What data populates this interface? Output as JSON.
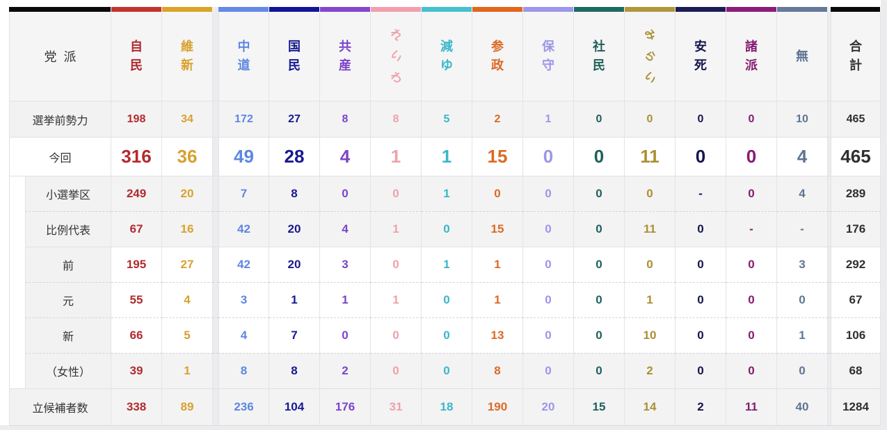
{
  "page": {
    "background": "#ececee"
  },
  "table": {
    "corner_label": "党派",
    "columns": [
      {
        "id": "jimin",
        "label": "自民",
        "color": "#b32a2e",
        "bar": "#c23429"
      },
      {
        "id": "ishin",
        "label": "維新",
        "color": "#d8a12e",
        "bar": "#dba428"
      },
      {
        "id": "chudo",
        "label": "中道",
        "color": "#5d87e2",
        "bar": "#6489e7"
      },
      {
        "id": "kokumin",
        "label": "国民",
        "color": "#19198f",
        "bar": "#15159b"
      },
      {
        "id": "kyosan",
        "label": "共産",
        "color": "#7b44c8",
        "bar": "#8547cd"
      },
      {
        "id": "reiwa",
        "label": "れいわ",
        "color": "#efa1ab",
        "bar": "#f09fae"
      },
      {
        "id": "genyu",
        "label": "減ゆ",
        "color": "#3bb7c8",
        "bar": "#45c1cd"
      },
      {
        "id": "sansei",
        "label": "参政",
        "color": "#db6a24",
        "bar": "#e2661c"
      },
      {
        "id": "hoshu",
        "label": "保守",
        "color": "#9c96e7",
        "bar": "#9e97e9"
      },
      {
        "id": "shamin",
        "label": "社民",
        "color": "#20605b",
        "bar": "#1d6a63"
      },
      {
        "id": "mirai",
        "label": "みらい",
        "color": "#aa9034",
        "bar": "#b2963c"
      },
      {
        "id": "anshi",
        "label": "安死",
        "color": "#16164e",
        "bar": "#1c1c55"
      },
      {
        "id": "shoha",
        "label": "諸派",
        "color": "#871b72",
        "bar": "#8d1b79"
      },
      {
        "id": "mu",
        "label": "無",
        "color": "#5e7593",
        "bar": "#65799a"
      },
      {
        "id": "gokei",
        "label": "合計",
        "color": "#333333",
        "bar": "#0a0a0b",
        "total": true
      }
    ],
    "rows": [
      {
        "label": "選挙前勢力",
        "bg": "gray",
        "sep": "solid",
        "size": "small",
        "indent": false,
        "values": [
          "198",
          "34",
          "172",
          "27",
          "8",
          "8",
          "5",
          "2",
          "1",
          "0",
          "0",
          "0",
          "0",
          "10",
          "465"
        ]
      },
      {
        "label": "今回",
        "bg": "white",
        "sep": "solid",
        "size": "large",
        "indent": false,
        "values": [
          "316",
          "36",
          "49",
          "28",
          "4",
          "1",
          "1",
          "15",
          "0",
          "0",
          "11",
          "0",
          "0",
          "4",
          "465"
        ]
      },
      {
        "label": "小選挙区",
        "bg": "gray",
        "sep": "solid",
        "indent": true,
        "values": [
          "249",
          "20",
          "7",
          "8",
          "0",
          "0",
          "1",
          "0",
          "0",
          "0",
          "0",
          "-",
          "0",
          "4",
          "289"
        ]
      },
      {
        "label": "比例代表",
        "bg": "gray",
        "sep": "dashed",
        "indent": true,
        "values": [
          "67",
          "16",
          "42",
          "20",
          "4",
          "1",
          "0",
          "15",
          "0",
          "0",
          "11",
          "0",
          "-",
          "-",
          "176"
        ]
      },
      {
        "label": "前",
        "bg": "white",
        "sep": "solid",
        "indent": true,
        "values": [
          "195",
          "27",
          "42",
          "20",
          "3",
          "0",
          "1",
          "1",
          "0",
          "0",
          "0",
          "0",
          "0",
          "3",
          "292"
        ]
      },
      {
        "label": "元",
        "bg": "white",
        "sep": "dashed",
        "indent": true,
        "values": [
          "55",
          "4",
          "3",
          "1",
          "1",
          "1",
          "0",
          "1",
          "0",
          "0",
          "1",
          "0",
          "0",
          "0",
          "67"
        ]
      },
      {
        "label": "新",
        "bg": "white",
        "sep": "dashed",
        "indent": true,
        "values": [
          "66",
          "5",
          "4",
          "7",
          "0",
          "0",
          "0",
          "13",
          "0",
          "0",
          "10",
          "0",
          "0",
          "1",
          "106"
        ]
      },
      {
        "label": "（女性）",
        "bg": "gray",
        "sep": "dashed",
        "indent": true,
        "values": [
          "39",
          "1",
          "8",
          "8",
          "2",
          "0",
          "0",
          "8",
          "0",
          "0",
          "2",
          "0",
          "0",
          "0",
          "68"
        ]
      },
      {
        "label": "立候補者数",
        "bg": "gray",
        "sep": "solid",
        "indent": false,
        "values": [
          "338",
          "89",
          "236",
          "104",
          "176",
          "31",
          "18",
          "190",
          "20",
          "15",
          "14",
          "2",
          "11",
          "40",
          "1284"
        ]
      }
    ]
  }
}
